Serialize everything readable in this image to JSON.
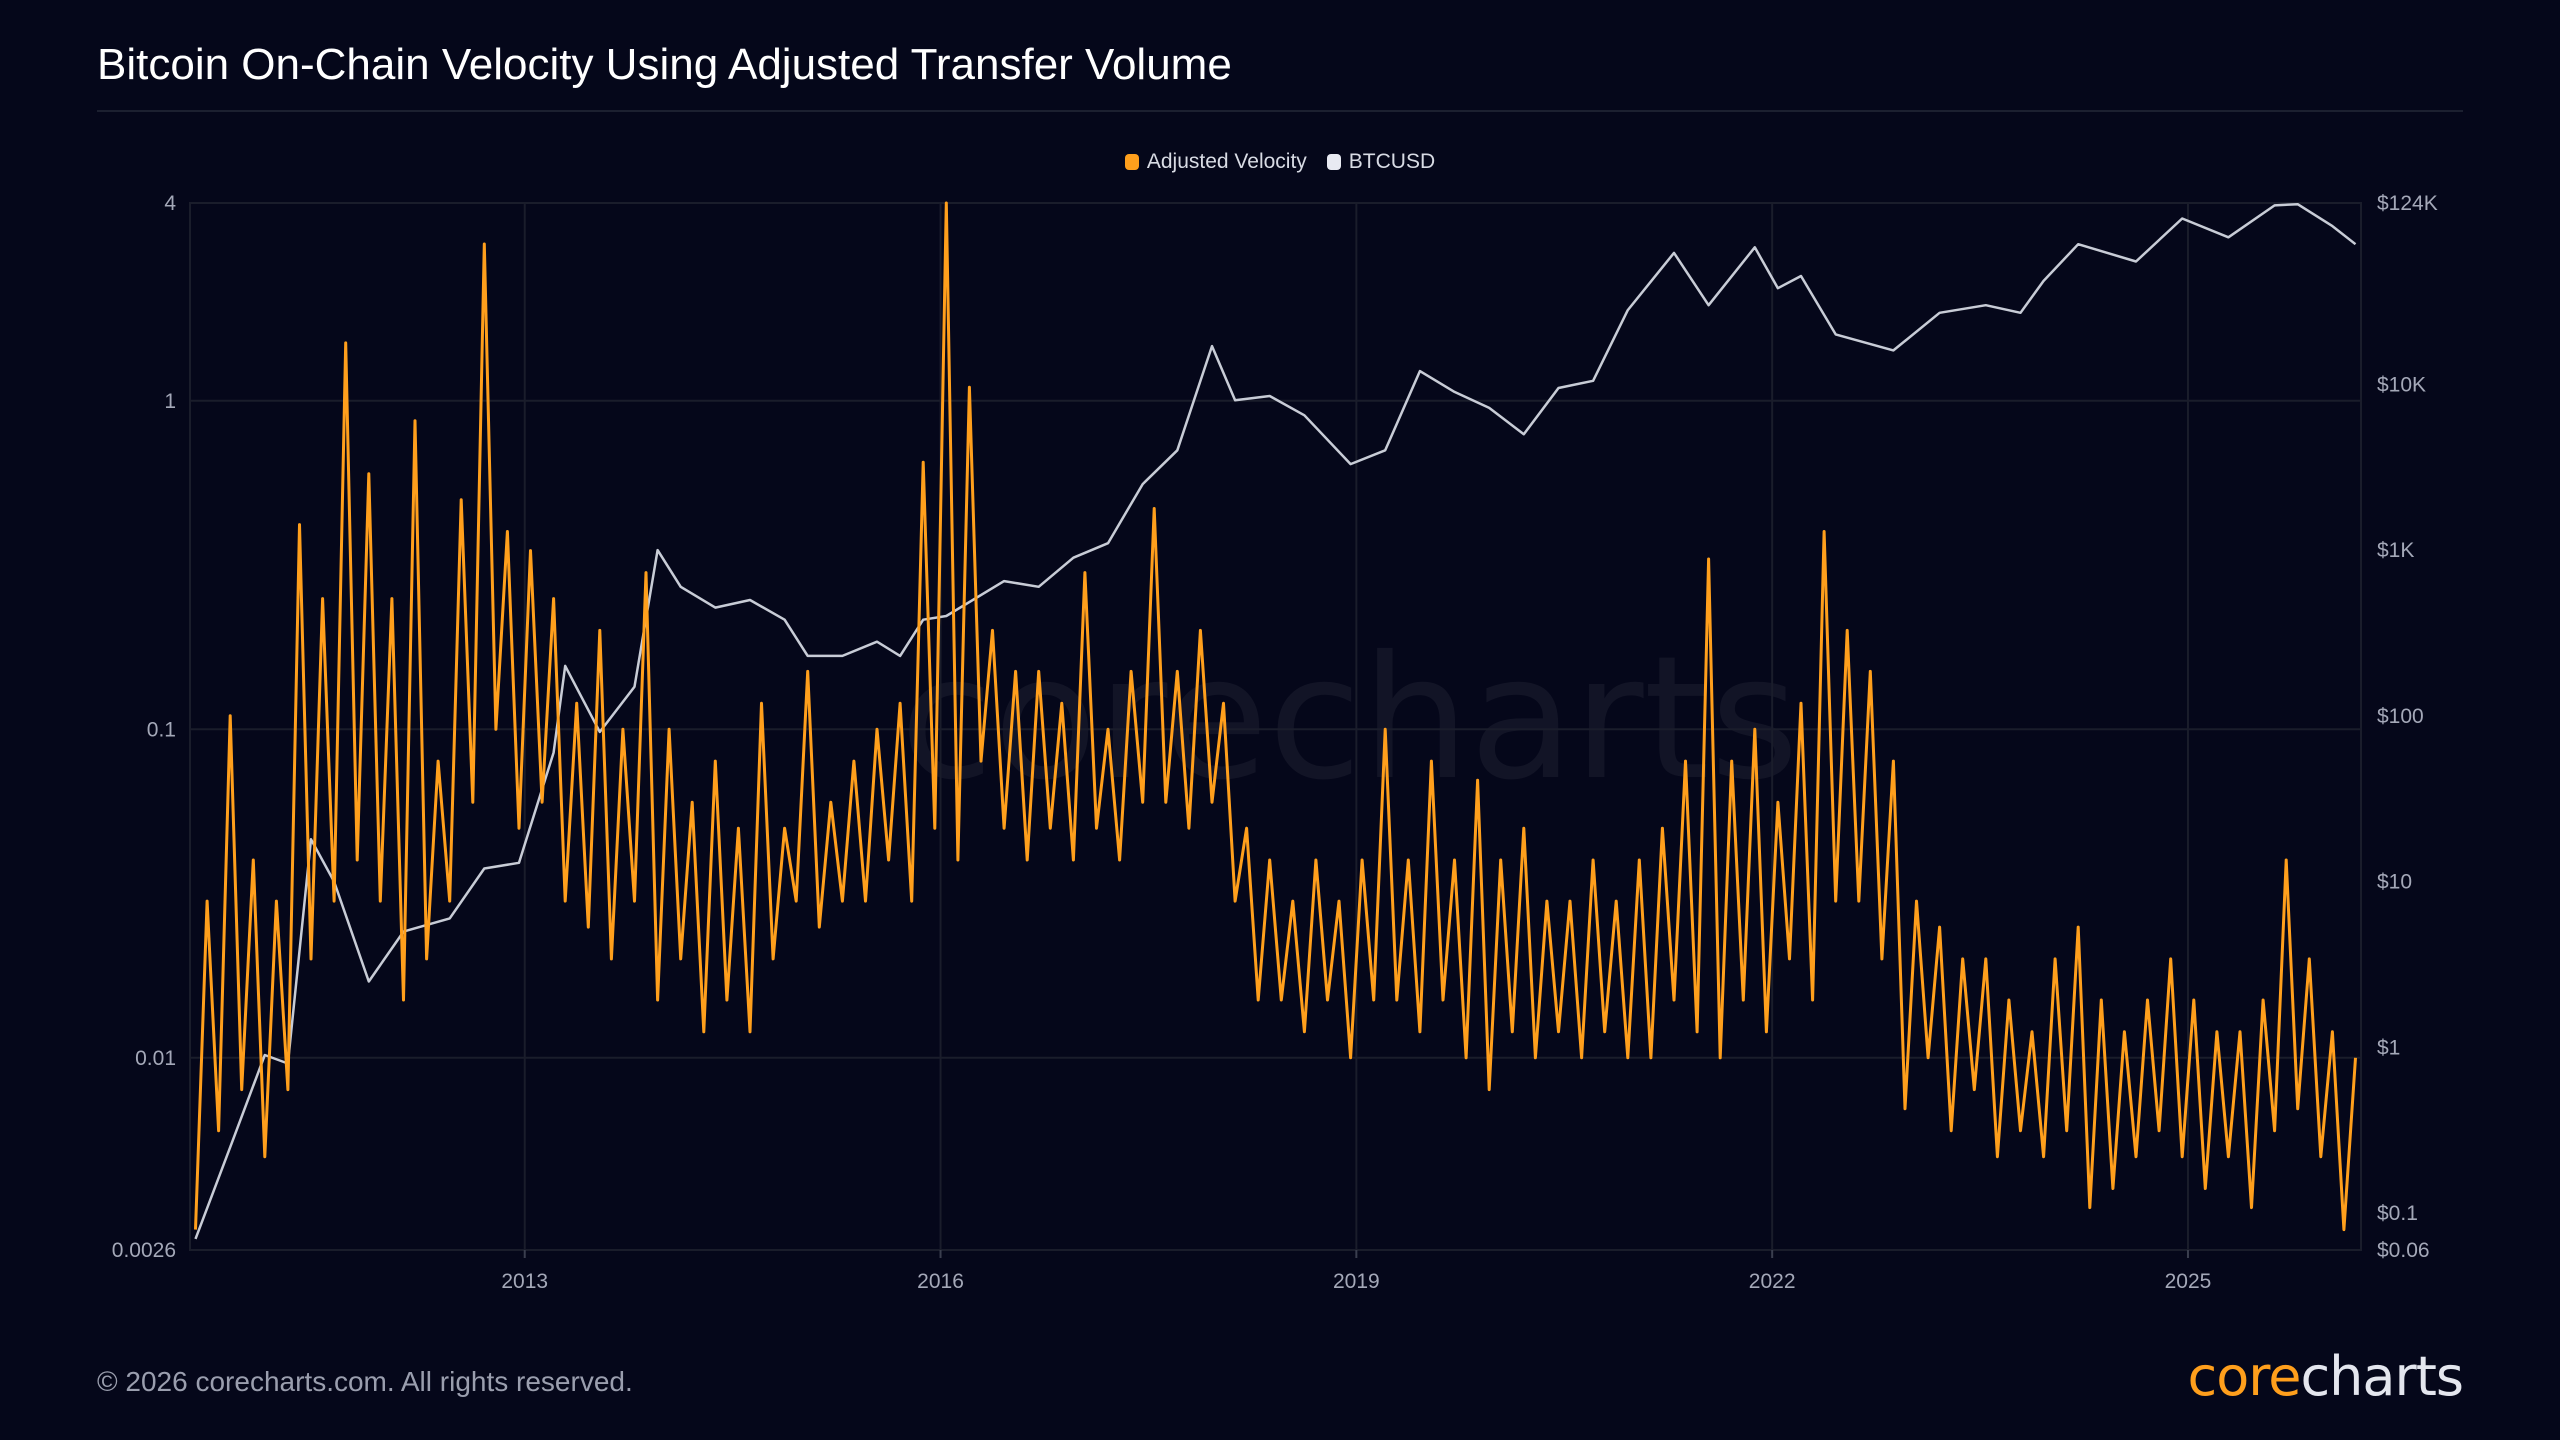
{
  "title": "Bitcoin On-Chain Velocity Using Adjusted Transfer Volume",
  "footer": "© 2026 corecharts.com. All rights reserved.",
  "logo": {
    "part1": "core",
    "part2": "charts"
  },
  "watermark": "corecharts",
  "colors": {
    "background": "#05071a",
    "velocity": "#ff9f1c",
    "price": "#c8ccd6",
    "grid": "#1a1d2b"
  },
  "chart_data": {
    "type": "line",
    "title": "Bitcoin On-Chain Velocity Using Adjusted Transfer Volume",
    "legend_position": "top-center",
    "grid": true,
    "x_range": [
      "2010-08",
      "2026-03"
    ],
    "x_ticks": [
      "2013",
      "2016",
      "2019",
      "2022",
      "2025"
    ],
    "y_left": {
      "scale": "log",
      "range": [
        0.0026,
        4
      ],
      "ticks": [
        "4",
        "1",
        "0.1",
        "0.01",
        "0.0026"
      ],
      "tick_values": [
        4,
        1,
        0.1,
        0.01,
        0.0026
      ]
    },
    "y_right": {
      "scale": "log",
      "range": [
        0.06,
        124000
      ],
      "ticks": [
        "$124K",
        "$10K",
        "$1K",
        "$100",
        "$10",
        "$1",
        "$0.1",
        "$0.06"
      ],
      "tick_values": [
        124000,
        10000,
        1000,
        100,
        10,
        1,
        0.1,
        0.06
      ]
    },
    "series": [
      {
        "name": "Adjusted Velocity",
        "axis": "left",
        "color": "#ff9f1c",
        "x": [
          "2010-08",
          "2010-09",
          "2010-10",
          "2010-11",
          "2010-12",
          "2011-01",
          "2011-02",
          "2011-03",
          "2011-04",
          "2011-05",
          "2011-06",
          "2011-07",
          "2011-08",
          "2011-09",
          "2011-10",
          "2011-11",
          "2011-12",
          "2012-01",
          "2012-02",
          "2012-03",
          "2012-04",
          "2012-05",
          "2012-06",
          "2012-07",
          "2012-08",
          "2012-09",
          "2012-10",
          "2012-11",
          "2012-12",
          "2013-01",
          "2013-02",
          "2013-03",
          "2013-04",
          "2013-05",
          "2013-06",
          "2013-07",
          "2013-08",
          "2013-09",
          "2013-10",
          "2013-11",
          "2013-12",
          "2014-01",
          "2014-02",
          "2014-03",
          "2014-04",
          "2014-05",
          "2014-06",
          "2014-07",
          "2014-08",
          "2014-09",
          "2014-10",
          "2014-11",
          "2014-12",
          "2015-01",
          "2015-02",
          "2015-03",
          "2015-04",
          "2015-05",
          "2015-06",
          "2015-07",
          "2015-08",
          "2015-09",
          "2015-10",
          "2015-11",
          "2015-12",
          "2016-01",
          "2016-02",
          "2016-03",
          "2016-04",
          "2016-05",
          "2016-06",
          "2016-07",
          "2016-08",
          "2016-09",
          "2016-10",
          "2016-11",
          "2016-12",
          "2017-01",
          "2017-02",
          "2017-03",
          "2017-04",
          "2017-05",
          "2017-06",
          "2017-07",
          "2017-08",
          "2017-09",
          "2017-10",
          "2017-11",
          "2017-12",
          "2018-01",
          "2018-02",
          "2018-03",
          "2018-04",
          "2018-05",
          "2018-06",
          "2018-07",
          "2018-08",
          "2018-09",
          "2018-10",
          "2018-11",
          "2018-12",
          "2019-01",
          "2019-02",
          "2019-03",
          "2019-04",
          "2019-05",
          "2019-06",
          "2019-07",
          "2019-08",
          "2019-09",
          "2019-10",
          "2019-11",
          "2019-12",
          "2020-01",
          "2020-02",
          "2020-03",
          "2020-04",
          "2020-05",
          "2020-06",
          "2020-07",
          "2020-08",
          "2020-09",
          "2020-10",
          "2020-11",
          "2020-12",
          "2021-01",
          "2021-02",
          "2021-03",
          "2021-04",
          "2021-05",
          "2021-06",
          "2021-07",
          "2021-08",
          "2021-09",
          "2021-10",
          "2021-11",
          "2021-12",
          "2022-01",
          "2022-02",
          "2022-03",
          "2022-04",
          "2022-05",
          "2022-06",
          "2022-07",
          "2022-08",
          "2022-09",
          "2022-10",
          "2022-11",
          "2022-12",
          "2023-01",
          "2023-02",
          "2023-03",
          "2023-04",
          "2023-05",
          "2023-06",
          "2023-07",
          "2023-08",
          "2023-09",
          "2023-10",
          "2023-11",
          "2023-12",
          "2024-01",
          "2024-02",
          "2024-03",
          "2024-04",
          "2024-05",
          "2024-06",
          "2024-07",
          "2024-08",
          "2024-09",
          "2024-10",
          "2024-11",
          "2024-12",
          "2025-01",
          "2025-02",
          "2025-03",
          "2025-04",
          "2025-05",
          "2025-06",
          "2025-07",
          "2025-08",
          "2025-09",
          "2025-10",
          "2025-11",
          "2025-12",
          "2026-01",
          "2026-02",
          "2026-03"
        ],
        "values": [
          0.003,
          0.03,
          0.006,
          0.11,
          0.008,
          0.04,
          0.005,
          0.03,
          0.008,
          0.42,
          0.02,
          0.25,
          0.03,
          1.5,
          0.04,
          0.6,
          0.03,
          0.25,
          0.015,
          0.87,
          0.02,
          0.08,
          0.03,
          0.5,
          0.06,
          3.0,
          0.1,
          0.4,
          0.05,
          0.35,
          0.06,
          0.25,
          0.03,
          0.12,
          0.025,
          0.2,
          0.02,
          0.1,
          0.03,
          0.3,
          0.015,
          0.1,
          0.02,
          0.06,
          0.012,
          0.08,
          0.015,
          0.05,
          0.012,
          0.12,
          0.02,
          0.05,
          0.03,
          0.15,
          0.025,
          0.06,
          0.03,
          0.08,
          0.03,
          0.1,
          0.04,
          0.12,
          0.03,
          0.65,
          0.05,
          4.0,
          0.04,
          1.1,
          0.08,
          0.2,
          0.05,
          0.15,
          0.04,
          0.15,
          0.05,
          0.12,
          0.04,
          0.3,
          0.05,
          0.1,
          0.04,
          0.15,
          0.06,
          0.47,
          0.06,
          0.15,
          0.05,
          0.2,
          0.06,
          0.12,
          0.03,
          0.05,
          0.015,
          0.04,
          0.015,
          0.03,
          0.012,
          0.04,
          0.015,
          0.03,
          0.01,
          0.04,
          0.015,
          0.1,
          0.015,
          0.04,
          0.012,
          0.08,
          0.015,
          0.04,
          0.01,
          0.07,
          0.008,
          0.04,
          0.012,
          0.05,
          0.01,
          0.03,
          0.012,
          0.03,
          0.01,
          0.04,
          0.012,
          0.03,
          0.01,
          0.04,
          0.01,
          0.05,
          0.015,
          0.08,
          0.012,
          0.33,
          0.01,
          0.08,
          0.015,
          0.1,
          0.012,
          0.06,
          0.02,
          0.12,
          0.015,
          0.4,
          0.03,
          0.2,
          0.03,
          0.15,
          0.02,
          0.08,
          0.007,
          0.03,
          0.01,
          0.025,
          0.006,
          0.02,
          0.008,
          0.02,
          0.005,
          0.015,
          0.006,
          0.012,
          0.005,
          0.02,
          0.006,
          0.025,
          0.0035,
          0.015,
          0.004,
          0.012,
          0.005,
          0.015,
          0.006,
          0.02,
          0.005,
          0.015,
          0.004,
          0.012,
          0.005,
          0.012,
          0.0035,
          0.015,
          0.006,
          0.04,
          0.007,
          0.02,
          0.005,
          0.012,
          0.003,
          0.01
        ]
      },
      {
        "name": "BTCUSD",
        "axis": "right",
        "color": "#c8ccd6",
        "x": [
          "2010-08",
          "2010-11",
          "2011-02",
          "2011-04",
          "2011-06",
          "2011-08",
          "2011-11",
          "2012-02",
          "2012-06",
          "2012-09",
          "2012-12",
          "2013-03",
          "2013-04",
          "2013-07",
          "2013-10",
          "2013-12",
          "2014-02",
          "2014-05",
          "2014-08",
          "2014-11",
          "2015-01",
          "2015-04",
          "2015-07",
          "2015-09",
          "2015-11",
          "2016-01",
          "2016-06",
          "2016-09",
          "2016-12",
          "2017-03",
          "2017-06",
          "2017-09",
          "2017-12",
          "2018-02",
          "2018-05",
          "2018-08",
          "2018-12",
          "2019-03",
          "2019-06",
          "2019-09",
          "2019-12",
          "2020-03",
          "2020-06",
          "2020-09",
          "2020-12",
          "2021-04",
          "2021-07",
          "2021-11",
          "2022-01",
          "2022-03",
          "2022-06",
          "2022-11",
          "2023-03",
          "2023-07",
          "2023-10",
          "2023-12",
          "2024-03",
          "2024-08",
          "2024-12",
          "2025-04",
          "2025-08",
          "2025-10",
          "2026-01",
          "2026-03"
        ],
        "values": [
          0.07,
          0.25,
          0.9,
          0.8,
          18,
          10,
          2.5,
          5,
          6,
          12,
          13,
          60,
          200,
          80,
          150,
          1000,
          600,
          450,
          500,
          380,
          230,
          230,
          280,
          230,
          380,
          400,
          650,
          600,
          900,
          1100,
          2500,
          4000,
          17000,
          8000,
          8500,
          6500,
          3300,
          4000,
          12000,
          9000,
          7200,
          5000,
          9500,
          10500,
          28000,
          62000,
          30000,
          67000,
          38000,
          45000,
          20000,
          16000,
          27000,
          30000,
          27000,
          42000,
          70000,
          55000,
          100000,
          77000,
          120000,
          122000,
          90000,
          70000
        ]
      }
    ]
  }
}
